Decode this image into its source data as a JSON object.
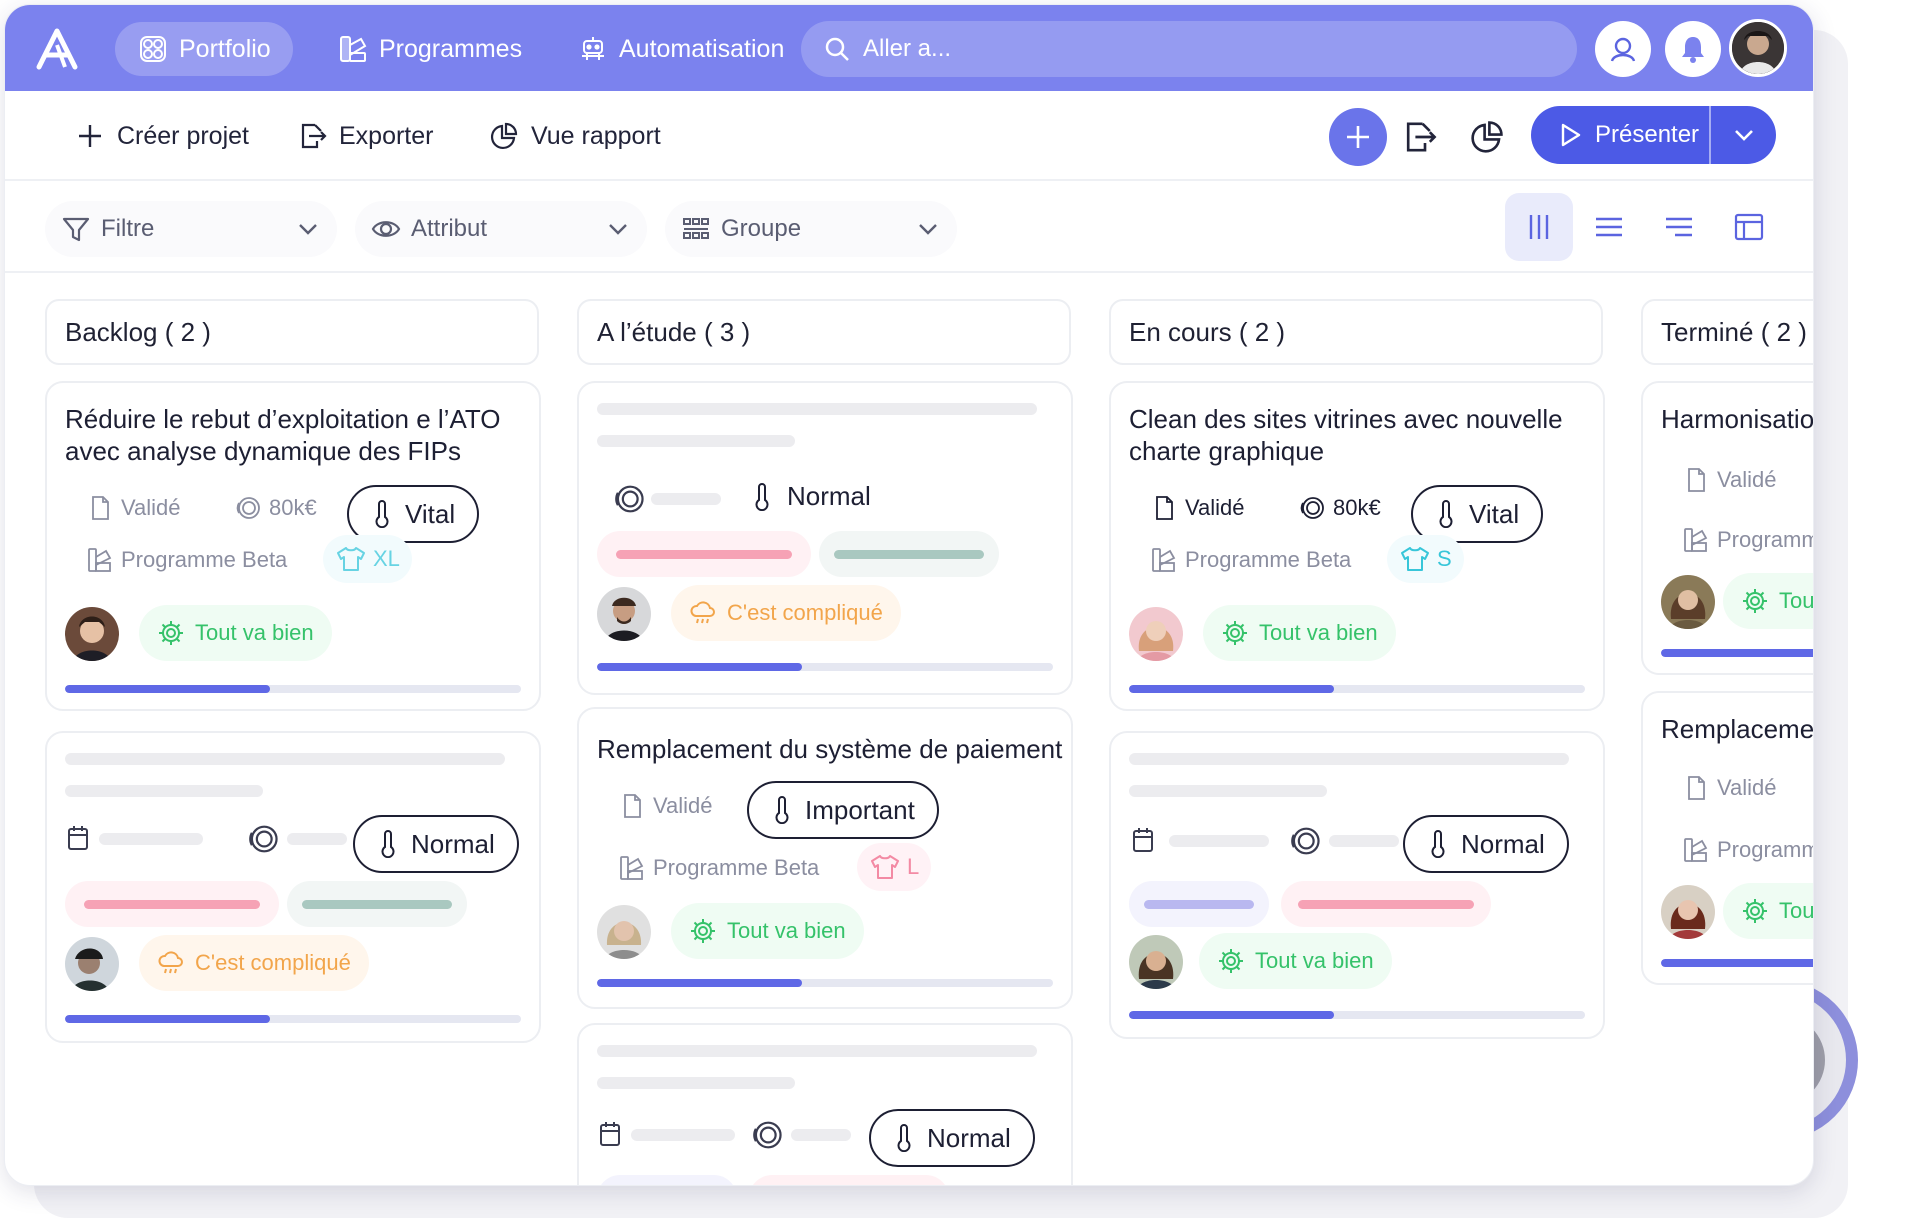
{
  "nav": {
    "tabs": [
      {
        "label": "Portfolio",
        "icon": "portfolio-icon",
        "active": true
      },
      {
        "label": "Programmes",
        "icon": "programmes-icon",
        "active": false
      },
      {
        "label": "Automatisation",
        "icon": "robot-icon",
        "active": false
      }
    ],
    "search_placeholder": "Aller a...",
    "accent_color": "#7b82ee"
  },
  "toolbar": {
    "create_label": "Créer projet",
    "export_label": "Exporter",
    "report_label": "Vue rapport",
    "present_label": "Présenter"
  },
  "filters": [
    {
      "label": "Filtre",
      "icon": "filter-icon"
    },
    {
      "label": "Attribut",
      "icon": "eye-icon"
    },
    {
      "label": "Groupe",
      "icon": "group-icon"
    }
  ],
  "columns": [
    {
      "label": "Backlog ( 2 )"
    },
    {
      "label": "A l’étude ( 3 )"
    },
    {
      "label": "En cours ( 2 )"
    },
    {
      "label": "Terminé ( 2 )"
    }
  ],
  "cards": {
    "backlog_1": {
      "title": [
        "Réduire le rebut d’exploitation e l’ATO",
        "avec analyse dynamique des FIPs"
      ],
      "status_doc": "Validé",
      "budget": "80k€",
      "priority": "Vital",
      "program": "Programme Beta",
      "size": "XL",
      "health": "Tout va bien",
      "progress": 0.45
    },
    "backlog_2": {
      "priority": "Normal",
      "health": "C'est compliqué",
      "progress": 0.45
    },
    "etude_1": {
      "priority": "Normal",
      "health": "C'est compliqué",
      "progress": 0.45
    },
    "etude_2": {
      "title": [
        "Remplacement du système de paiement"
      ],
      "status_doc": "Validé",
      "priority": "Important",
      "program": "Programme Beta",
      "size": "L",
      "health": "Tout va bien",
      "progress": 0.45
    },
    "etude_3": {
      "priority": "Normal"
    },
    "cours_1": {
      "title": [
        "Clean des sites vitrines avec nouvelle",
        "charte graphique"
      ],
      "status_doc": "Validé",
      "budget": "80k€",
      "priority": "Vital",
      "program": "Programme Beta",
      "size": "S",
      "health": "Tout va bien",
      "progress": 0.45
    },
    "cours_2": {
      "priority": "Normal",
      "health": "Tout va bien",
      "progress": 0.45
    },
    "termine_1": {
      "title": [
        "Harmonisation"
      ],
      "status_doc": "Validé",
      "program": "Programme Beta",
      "health": "Tout va bien"
    },
    "termine_2": {
      "title": [
        "Remplacement"
      ],
      "status_doc": "Validé",
      "program": "Programme Beta",
      "health": "Tout va bien"
    }
  }
}
